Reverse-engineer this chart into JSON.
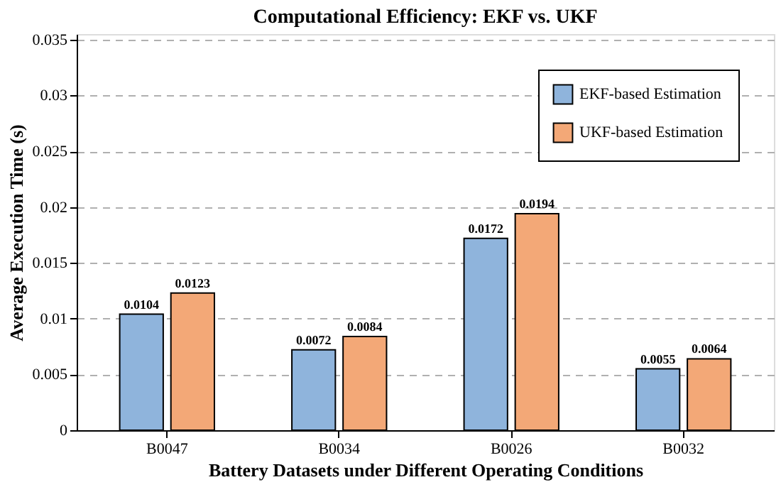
{
  "chart_data": {
    "type": "bar",
    "title": "Computational Efficiency: EKF vs. UKF",
    "xlabel": "Battery Datasets under Different Operating Conditions",
    "ylabel": "Average Execution Time (s)",
    "categories": [
      "B0047",
      "B0034",
      "B0026",
      "B0032"
    ],
    "series": [
      {
        "name": "EKF-based Estimation",
        "color": "#8fb4dc",
        "values": [
          0.0104,
          0.0072,
          0.0172,
          0.0055
        ]
      },
      {
        "name": "UKF-based Estimation",
        "color": "#f3a877",
        "values": [
          0.0123,
          0.0084,
          0.0194,
          0.0064
        ]
      }
    ],
    "ylim": [
      0,
      0.0355
    ],
    "yticks": [
      0,
      0.005,
      0.01,
      0.015,
      0.02,
      0.025,
      0.03,
      0.035
    ],
    "grid": "y",
    "legend": "top right",
    "data_labels": true
  }
}
